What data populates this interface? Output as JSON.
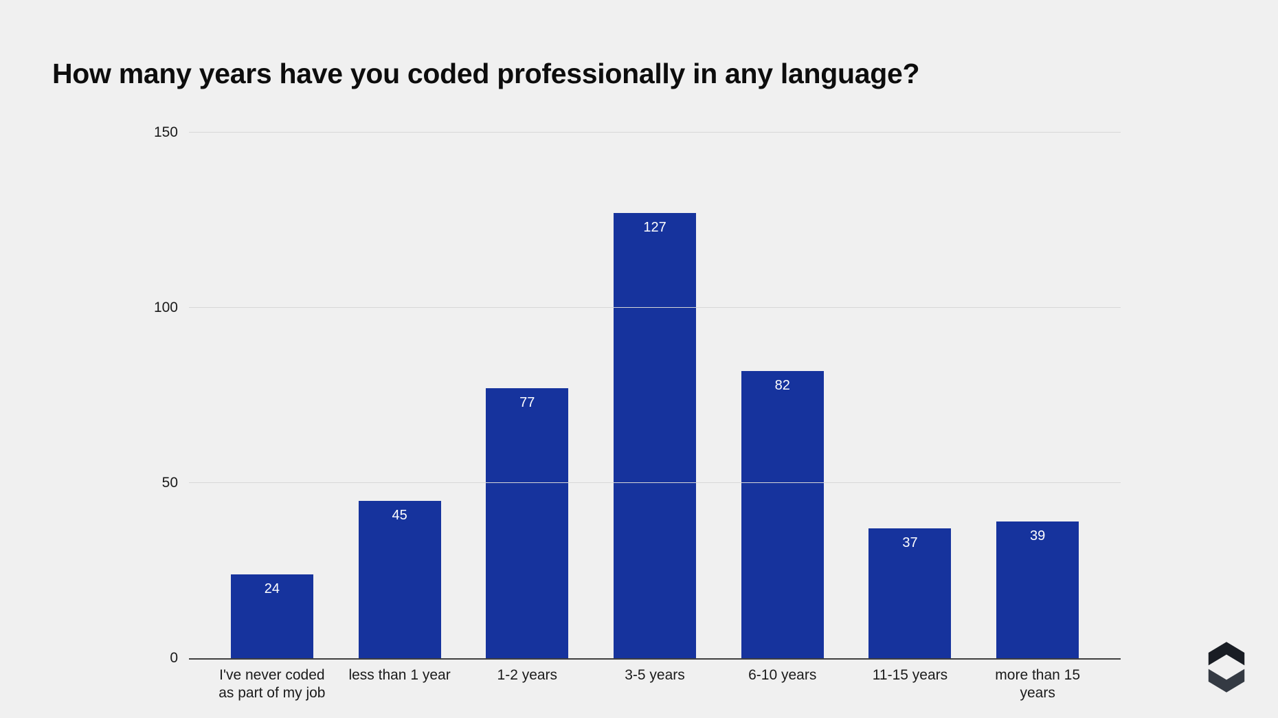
{
  "title": "How many years have you coded professionally in any language?",
  "colors": {
    "page_background": "#f0f0f0",
    "bar": "#16339D",
    "value_label": "#ffffff",
    "gridline": "#d7d7d7",
    "axis_line": "#3f3f3f",
    "text": "#1a1a1a",
    "logo_dark": "#191d24",
    "logo_light": "#343a43"
  },
  "chart_data": {
    "type": "bar",
    "title": "How many years have you coded professionally in any language?",
    "categories": [
      "I've never coded as part of my job",
      "less than 1 year",
      "1-2 years",
      "3-5 years",
      "6-10 years",
      "11-15 years",
      "more than 15 years"
    ],
    "values": [
      24,
      45,
      77,
      127,
      82,
      37,
      39
    ],
    "xlabel": "",
    "ylabel": "",
    "ylim": [
      0,
      150
    ],
    "y_ticks": [
      0,
      50,
      100,
      150
    ],
    "grid": true,
    "legend": false,
    "value_label_position": "inside-top",
    "bar_color": "#16339D"
  },
  "branding": {
    "logo_icon": "hexagon-s-logo"
  }
}
